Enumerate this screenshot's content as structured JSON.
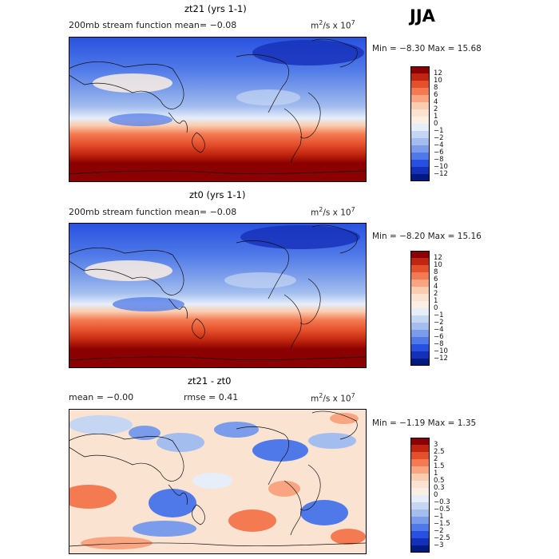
{
  "season": "JJA",
  "units": {
    "base": "m",
    "exp1": "2",
    "mid": "/s x 10",
    "exp2": "7"
  },
  "palette": {
    "dark_red": "#8b0000",
    "red": "#c0250f",
    "orange_red": "#e4502b",
    "orange": "#f47a52",
    "salmon": "#f9a581",
    "peach": "#fbcdb0",
    "cream": "#fbeee2",
    "ice": "#e6eefa",
    "pale_blue": "#c5d6f2",
    "light_blue": "#a2bdee",
    "mid_blue": "#7a9cea",
    "blue": "#4f79e8",
    "deep_blue": "#2750e0",
    "navy": "#1530b8",
    "dark_navy": "#001a80",
    "land_outline": "#111111"
  },
  "panels": [
    {
      "title": "zt21 (yrs 1-1)",
      "subtitle": "200mb stream function  mean=  −0.08",
      "min_text": "Min =  −8.30 Max =  15.68",
      "colorbar": {
        "ticks": [
          "12",
          "10",
          "8",
          "6",
          "4",
          "2",
          "1",
          "0",
          "−1",
          "−2",
          "−4",
          "−6",
          "−8",
          "−10",
          "−12"
        ]
      }
    },
    {
      "title": "zt0 (yrs 1-1)",
      "subtitle": "200mb stream function  mean=  −0.08",
      "min_text": "Min =  −8.20 Max =  15.16",
      "colorbar": {
        "ticks": [
          "12",
          "10",
          "8",
          "6",
          "4",
          "2",
          "1",
          "0",
          "−1",
          "−2",
          "−4",
          "−6",
          "−8",
          "−10",
          "−12"
        ]
      }
    },
    {
      "title": "zt21 - zt0",
      "mean_text": "mean =  −0.00",
      "rmse_text": "rmse =   0.41",
      "min_text": "Min =  −1.19 Max =   1.35",
      "colorbar": {
        "ticks": [
          "3",
          "2.5",
          "2",
          "1.5",
          "1",
          "0.5",
          "0.3",
          "0",
          "−0.3",
          "−0.5",
          "−1",
          "−1.5",
          "−2",
          "−2.5",
          "−3"
        ]
      }
    }
  ],
  "chart_data": [
    {
      "type": "heatmap",
      "title": "zt21 (yrs 1-1)",
      "subtitle": "200mb stream function",
      "mean": -0.08,
      "min": -8.3,
      "max": 15.68,
      "units": "m2/s x 10^7",
      "levels": [
        12,
        10,
        8,
        6,
        4,
        2,
        1,
        0,
        -1,
        -2,
        -4,
        -6,
        -8,
        -10,
        -12
      ],
      "description_of_field": "negative (blue) in the northern hemisphere, positive (red) in the southern hemisphere"
    },
    {
      "type": "heatmap",
      "title": "zt0 (yrs 1-1)",
      "subtitle": "200mb stream function",
      "mean": -0.08,
      "min": -8.2,
      "max": 15.16,
      "units": "m2/s x 10^7",
      "levels": [
        12,
        10,
        8,
        6,
        4,
        2,
        1,
        0,
        -1,
        -2,
        -4,
        -6,
        -8,
        -10,
        -12
      ]
    },
    {
      "type": "heatmap",
      "title": "zt21 - zt0",
      "mean": -0.0,
      "rmse": 0.41,
      "min": -1.19,
      "max": 1.35,
      "units": "m2/s x 10^7",
      "levels": [
        3,
        2.5,
        2,
        1.5,
        1,
        0.5,
        0.3,
        0,
        -0.3,
        -0.5,
        -1,
        -1.5,
        -2,
        -2.5,
        -3
      ]
    }
  ]
}
